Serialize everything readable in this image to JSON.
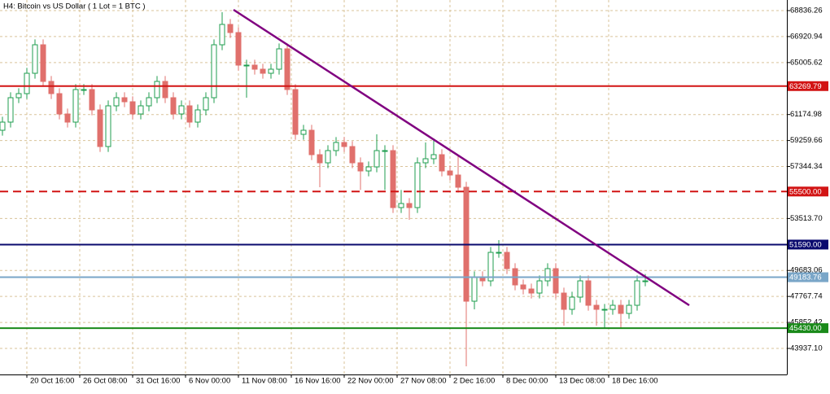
{
  "chart_data": {
    "type": "candlestick",
    "title": "H4: Bitcoin vs US Dollar  ( 1 Lot = 1 BTC )",
    "up_color": "#1f9e4f",
    "down_color": "#e0706c",
    "grid": true,
    "grid_color": "#d9c39a",
    "xlim": [
      -0.3,
      96.4
    ],
    "ylim": [
      42017,
      69616
    ],
    "xticks": [
      {
        "value": 3,
        "label": "20 Oct 16:00"
      },
      {
        "value": 9.5,
        "label": "26 Oct 08:00"
      },
      {
        "value": 16,
        "label": "31 Oct 16:00"
      },
      {
        "value": 22.5,
        "label": "6 Nov 00:00"
      },
      {
        "value": 29,
        "label": "11 Nov 08:00"
      },
      {
        "value": 35.5,
        "label": "16 Nov 16:00"
      },
      {
        "value": 42,
        "label": "22 Nov 00:00"
      },
      {
        "value": 48.5,
        "label": "27 Nov 08:00"
      },
      {
        "value": 55,
        "label": "2 Dec 16:00"
      },
      {
        "value": 61.5,
        "label": "8 Dec 00:00"
      },
      {
        "value": 68,
        "label": "13 Dec 08:00"
      },
      {
        "value": 74.5,
        "label": "18 Dec 16:00"
      }
    ],
    "yticks": [
      68836.26,
      66920.94,
      65005.62,
      61174.98,
      59259.66,
      57344.34,
      {
        "value": 53513.7,
        "label": "53513.70"
      },
      49683.06,
      47767.74,
      45852.42,
      {
        "value": 43937.1,
        "label": "43937.10"
      }
    ],
    "open": [
      60016,
      60616,
      62416,
      62716,
      64216,
      66316,
      63616,
      62716,
      61216,
      60616,
      63016,
      63016,
      61516,
      58816,
      61816,
      62416,
      62116,
      61216,
      61816,
      62416,
      63616,
      62416,
      61216,
      61816,
      60616,
      61516,
      62416,
      66316,
      67816,
      67216,
      64816,
      64816,
      64516,
      64216,
      64516,
      66016,
      63016,
      59716,
      60016,
      58216,
      57616,
      58516,
      59116,
      58816,
      57616,
      57016,
      57316,
      58516,
      58516,
      54316,
      54616,
      54316,
      57616,
      57916,
      58216,
      57016,
      56716,
      55816,
      47416,
      49216,
      48916,
      51016,
      51016,
      49816,
      48616,
      48316,
      48016,
      48916,
      49816,
      48016,
      46816,
      47716,
      48916,
      47116,
      46816,
      46816,
      47116,
      46516,
      47116,
      48916
    ],
    "high": [
      61016,
      62816,
      63116,
      64616,
      66716,
      66716,
      64016,
      63116,
      61616,
      63416,
      63416,
      63416,
      61916,
      62216,
      62816,
      62816,
      62516,
      62216,
      62816,
      64016,
      64016,
      62816,
      62216,
      62216,
      61916,
      62816,
      66716,
      68716,
      68216,
      67616,
      65216,
      65216,
      64916,
      64916,
      66416,
      66416,
      63416,
      60416,
      60416,
      58616,
      58916,
      59516,
      59516,
      59216,
      58016,
      57716,
      59716,
      58916,
      58916,
      55616,
      55016,
      58016,
      59116,
      59416,
      58616,
      57416,
      58216,
      56216,
      49616,
      49616,
      51416,
      51916,
      51416,
      50216,
      49016,
      48716,
      49316,
      50216,
      50216,
      48416,
      48116,
      49316,
      49316,
      47516,
      47216,
      47516,
      47516,
      47516,
      49316,
      49416
    ],
    "low": [
      59616,
      60216,
      62016,
      62316,
      63816,
      63216,
      62316,
      60816,
      60216,
      60216,
      62616,
      61116,
      58416,
      58416,
      61416,
      61716,
      60816,
      60816,
      61416,
      62016,
      62016,
      60816,
      60816,
      60216,
      60216,
      61116,
      62016,
      65916,
      66816,
      64416,
      62416,
      64116,
      63816,
      63816,
      64116,
      62616,
      59316,
      59316,
      57816,
      55816,
      57216,
      58116,
      58416,
      57216,
      55616,
      56616,
      56916,
      55616,
      53916,
      53916,
      53416,
      53916,
      57216,
      57516,
      56616,
      56316,
      55416,
      42616,
      46816,
      48516,
      48516,
      50616,
      49416,
      48216,
      47916,
      47616,
      47616,
      48516,
      47616,
      45616,
      46416,
      47316,
      46716,
      45616,
      45416,
      46416,
      45416,
      46116,
      46716,
      48516
    ],
    "close": [
      60616,
      62416,
      62716,
      64216,
      66316,
      63616,
      62716,
      61216,
      60616,
      63016,
      63016,
      61516,
      58816,
      61816,
      62416,
      62116,
      61216,
      61816,
      62416,
      63616,
      62416,
      61216,
      61816,
      60616,
      61516,
      62416,
      66316,
      67816,
      67216,
      64816,
      64816,
      64516,
      64216,
      64516,
      66016,
      63016,
      59716,
      60016,
      58216,
      57616,
      58516,
      59116,
      58816,
      57616,
      57016,
      57316,
      58516,
      58516,
      54316,
      54616,
      54316,
      57616,
      57916,
      58216,
      57016,
      56716,
      55816,
      47416,
      49216,
      48916,
      51016,
      51016,
      49816,
      48616,
      48316,
      48016,
      48916,
      49816,
      48016,
      46816,
      47716,
      48916,
      47116,
      46816,
      46816,
      47116,
      46516,
      47116,
      48916,
      48916
    ],
    "levels": [
      {
        "price": 63269.79,
        "color": "#d21414",
        "dashed": false
      },
      {
        "price": {
          "value": 55500,
          "label": "55500.00"
        },
        "color": "#d21414",
        "dashed": true
      },
      {
        "price": {
          "value": 51590,
          "label": "51590.00"
        },
        "color": "#0a0a6e",
        "dashed": false
      },
      {
        "price": 49183.76,
        "color": "#7aa6c8",
        "dashed": false
      },
      {
        "price": {
          "value": 45430,
          "label": "45430.00"
        },
        "color": "#1a8a1a",
        "dashed": false
      }
    ],
    "trendline": [
      [
        28.4,
        68896
      ],
      [
        84.4,
        47116
      ]
    ],
    "trendline_color": "#800080"
  }
}
